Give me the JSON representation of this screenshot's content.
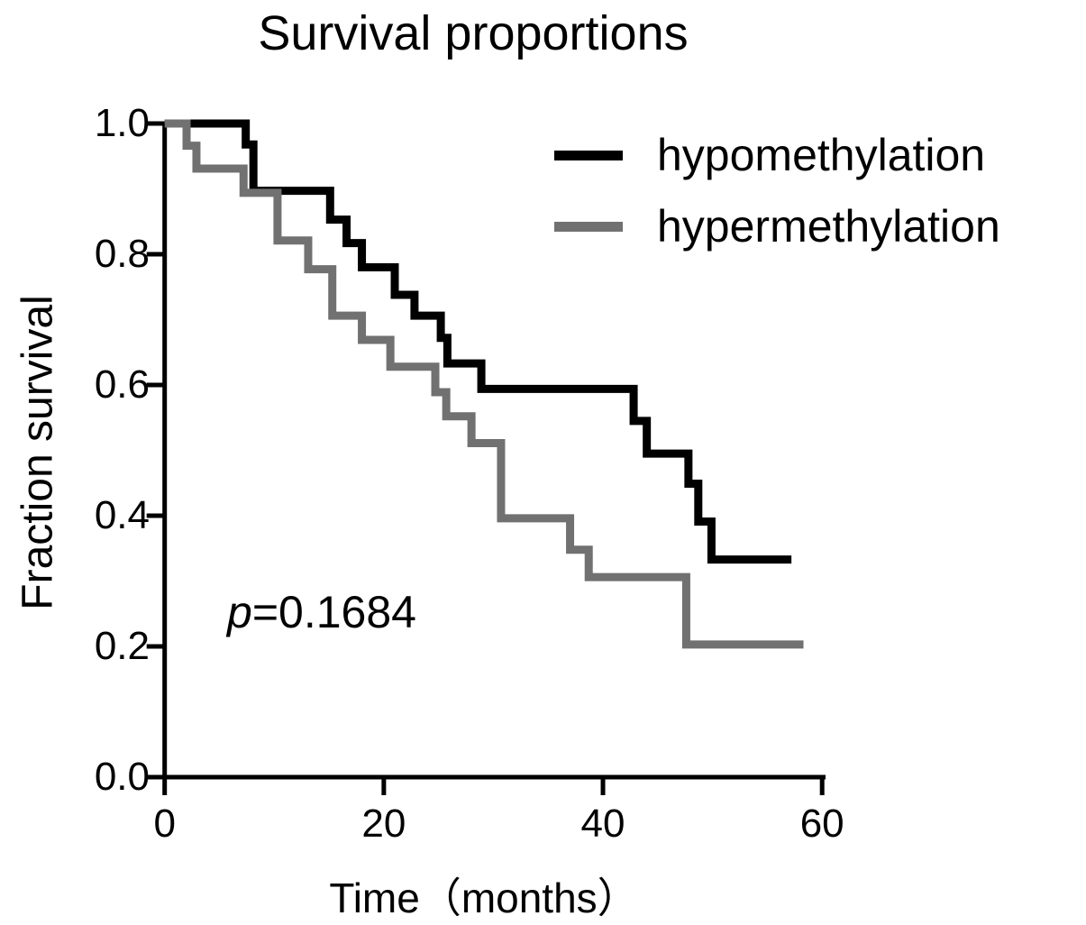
{
  "title": "Survival proportions",
  "p_annotation": {
    "symbol": "p",
    "value": "=0.1684"
  },
  "legend": [
    {
      "label": "hypomethylation",
      "color": "#000000"
    },
    {
      "label": "hypermethylation",
      "color": "#717171"
    }
  ],
  "axis_color": "#000000",
  "chart_data": {
    "type": "line",
    "subtype": "kaplan-meier-step",
    "title": "Survival proportions",
    "xlabel": "Time（months）",
    "ylabel": "Fraction survival",
    "xlim": [
      0,
      60
    ],
    "ylim": [
      0.0,
      1.0
    ],
    "x_ticks": [
      0,
      20,
      40,
      60
    ],
    "y_ticks": [
      0.0,
      0.2,
      0.4,
      0.6,
      0.8,
      1.0
    ],
    "grid": false,
    "legend_position": "upper right",
    "annotation": "p=0.1684",
    "series": [
      {
        "name": "hypomethylation",
        "color": "#000000",
        "end_time": 57.2,
        "points": [
          [
            0,
            1.0
          ],
          [
            7.4,
            0.968
          ],
          [
            8.1,
            0.897
          ],
          [
            15.1,
            0.853
          ],
          [
            16.6,
            0.817
          ],
          [
            18.0,
            0.78
          ],
          [
            21.0,
            0.738
          ],
          [
            22.8,
            0.706
          ],
          [
            25.2,
            0.672
          ],
          [
            25.8,
            0.633
          ],
          [
            28.9,
            0.594
          ],
          [
            42.8,
            0.545
          ],
          [
            44.0,
            0.495
          ],
          [
            47.8,
            0.449
          ],
          [
            48.7,
            0.391
          ],
          [
            49.9,
            0.333
          ]
        ]
      },
      {
        "name": "hypermethylation",
        "color": "#717171",
        "end_time": 58.3,
        "points": [
          [
            0,
            1.0
          ],
          [
            2.0,
            0.966
          ],
          [
            2.9,
            0.931
          ],
          [
            7.2,
            0.894
          ],
          [
            10.3,
            0.821
          ],
          [
            13.1,
            0.777
          ],
          [
            15.3,
            0.706
          ],
          [
            18.0,
            0.669
          ],
          [
            20.6,
            0.628
          ],
          [
            24.7,
            0.589
          ],
          [
            25.7,
            0.552
          ],
          [
            28.0,
            0.511
          ],
          [
            30.7,
            0.396
          ],
          [
            37.0,
            0.348
          ],
          [
            38.7,
            0.306
          ],
          [
            47.6,
            0.203
          ]
        ]
      }
    ]
  }
}
